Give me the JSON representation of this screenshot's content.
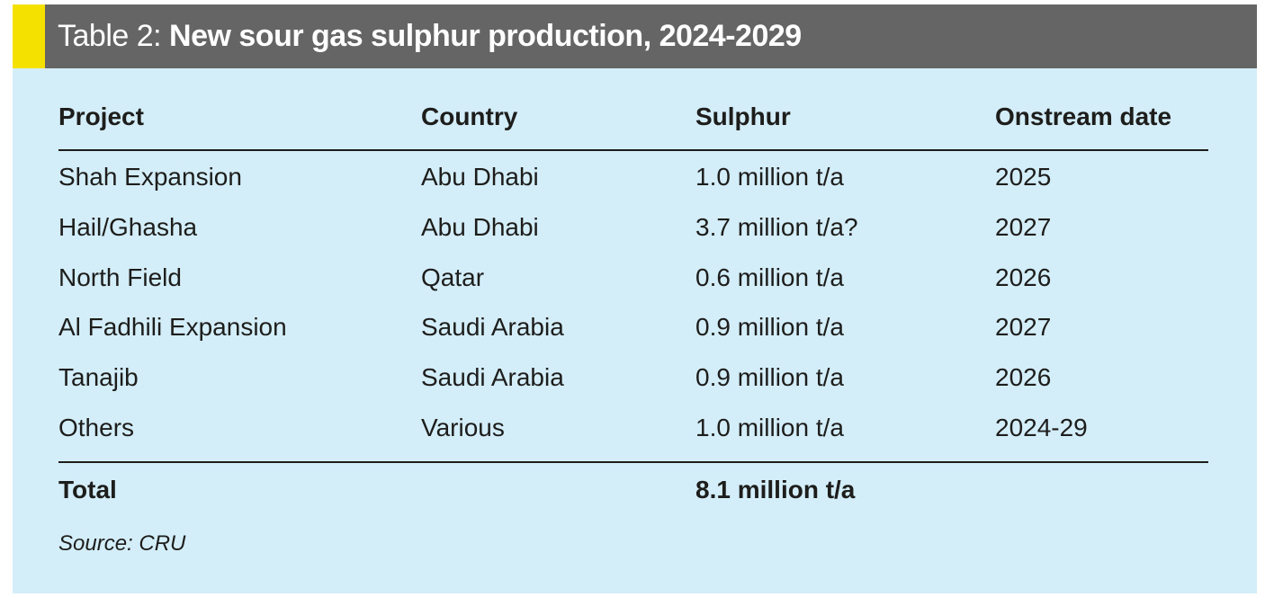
{
  "header": {
    "label": "Table 2:",
    "title": "New sour gas sulphur production, 2024-2029"
  },
  "table": {
    "columns": [
      "Project",
      "Country",
      "Sulphur",
      "Onstream date"
    ],
    "rows": [
      [
        "Shah Expansion",
        "Abu Dhabi",
        "1.0 million t/a",
        "2025"
      ],
      [
        "Hail/Ghasha",
        "Abu Dhabi",
        "3.7 million t/a?",
        "2027"
      ],
      [
        "North Field",
        "Qatar",
        "0.6 million t/a",
        "2026"
      ],
      [
        "Al Fadhili Expansion",
        "Saudi Arabia",
        "0.9 million t/a",
        "2027"
      ],
      [
        "Tanajib",
        "Saudi Arabia",
        "0.9 million t/a",
        "2026"
      ],
      [
        "Others",
        "Various",
        "1.0 million t/a",
        "2024-29"
      ]
    ],
    "total": {
      "label": "Total",
      "sulphur": "8.1 million t/a"
    }
  },
  "source": "Source: CRU"
}
